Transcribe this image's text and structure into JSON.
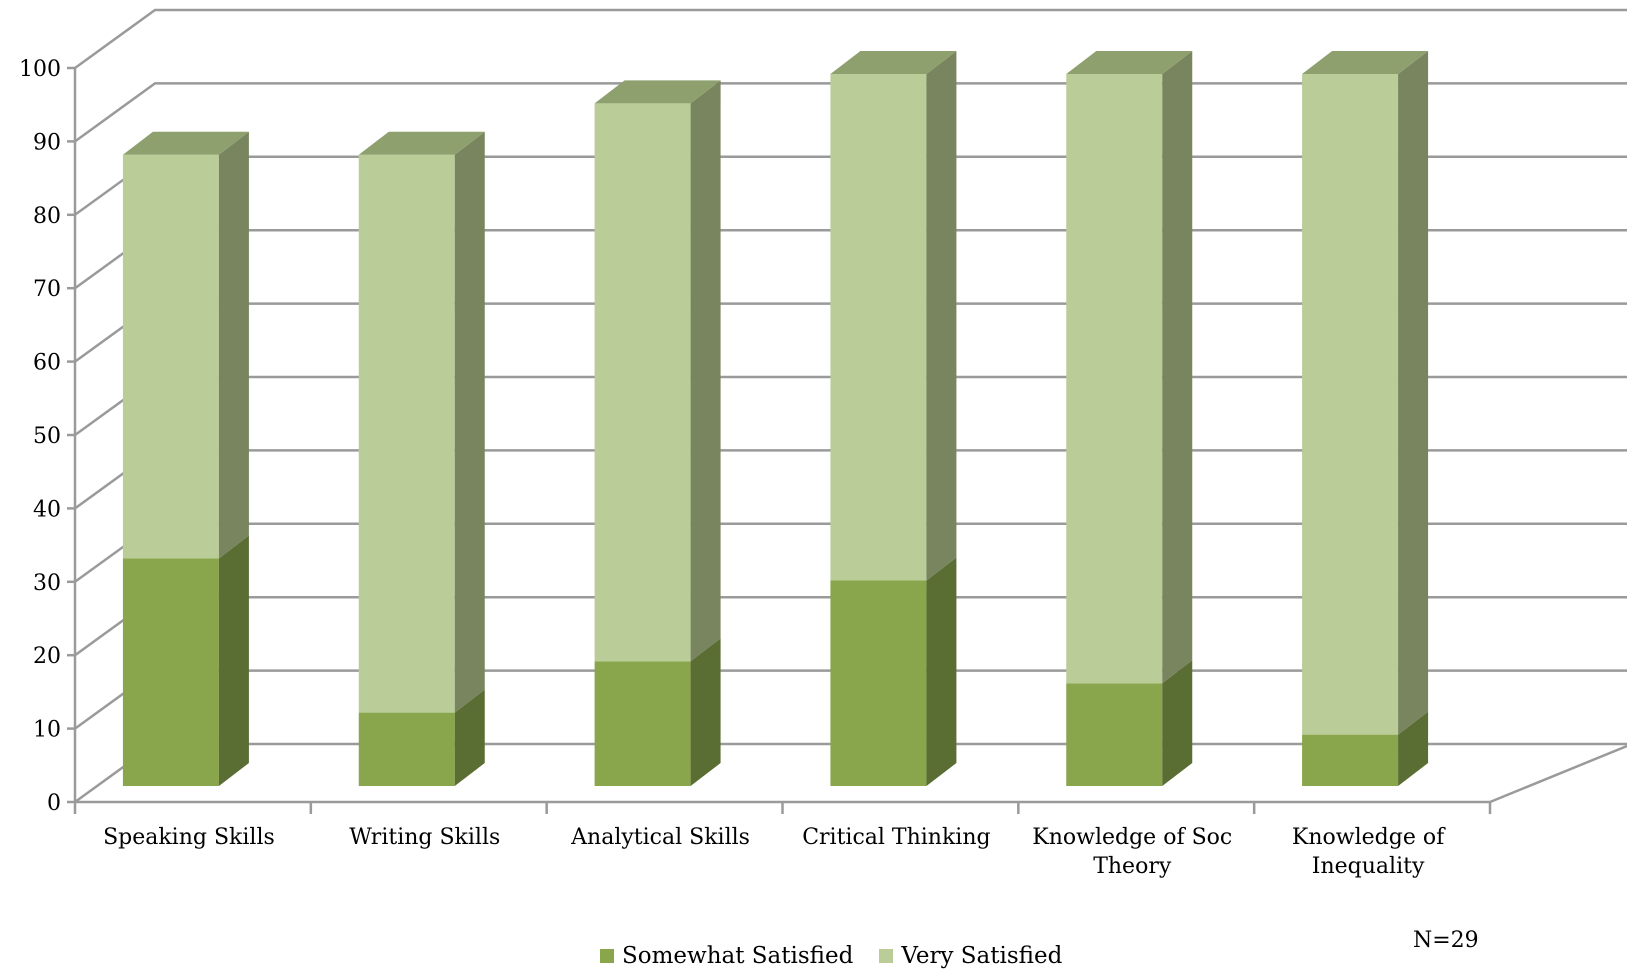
{
  "chart_data": {
    "type": "bar",
    "stacked": true,
    "three_d": true,
    "categories": [
      "Speaking Skills",
      "Writing Skills",
      "Analytical Skills",
      "Critical Thinking",
      "Knowledge of Soc Theory",
      "Knowledge of Inequality"
    ],
    "category_lines": [
      [
        "Speaking Skills"
      ],
      [
        "Writing Skills"
      ],
      [
        "Analytical Skills"
      ],
      [
        "Critical Thinking"
      ],
      [
        "Knowledge of Soc",
        "Theory"
      ],
      [
        "Knowledge of",
        "Inequality"
      ]
    ],
    "series": [
      {
        "name": "Somewhat Satisfied",
        "values": [
          31,
          10,
          17,
          28,
          14,
          7
        ],
        "color": "#8aa64d",
        "side_color": "#5a6d33"
      },
      {
        "name": "Very Satisfied",
        "values": [
          55,
          76,
          76,
          69,
          83,
          90
        ],
        "color": "#bacd98",
        "side_color": "#78855f"
      }
    ],
    "ylim": [
      0,
      100
    ],
    "yticks": [
      0,
      10,
      20,
      30,
      40,
      50,
      60,
      70,
      80,
      90,
      100
    ],
    "grid": true,
    "legend_position": "bottom",
    "annotation": "N=29"
  }
}
